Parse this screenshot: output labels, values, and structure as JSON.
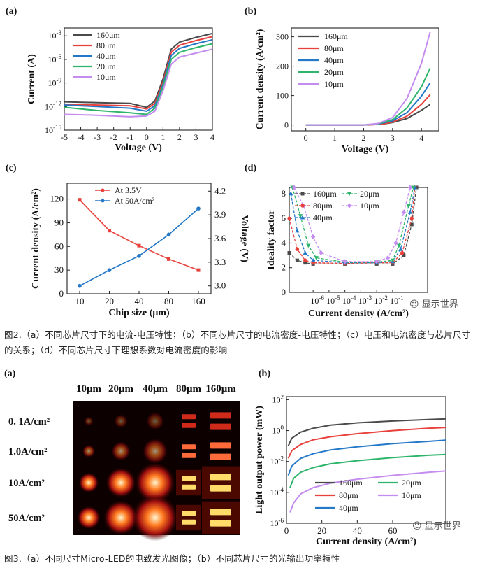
{
  "figure2": {
    "caption": "图2.（a）不同芯片尺寸下的电流-电压特性；（b）不同芯片尺寸的电流密度-电压特性；（c）电压和电流密度与芯片尺寸的关系；（d）不同芯片尺寸下理想系数对电流密度的影响",
    "watermark": "显示世界"
  },
  "figure3": {
    "caption": "图3.（a）不同尺寸Micro-LED的电致发光图像；（b）不同芯片尺寸的光输出功率特性",
    "watermark": "显示世界",
    "image_grid": {
      "panel_label": "(a)",
      "sizes": [
        "10μm",
        "20μm",
        "40μm",
        "80μm",
        "160μm"
      ],
      "current_densities": [
        "0. 1A/cm²",
        "1.0A/cm²",
        "10A/cm²",
        "50A/cm²"
      ]
    }
  },
  "chart_data": [
    {
      "id": "2a",
      "type": "line",
      "panel_label": "(a)",
      "xlabel": "Voltage (V)",
      "ylabel": "Current (A)",
      "xlim": [
        -5,
        4
      ],
      "ylim_log10": [
        -15,
        -2
      ],
      "yscale": "log",
      "x_ticks": [
        "-5",
        "-4",
        "-3",
        "-2",
        "-1",
        "0",
        "1",
        "2",
        "3",
        "4"
      ],
      "y_ticks": [
        {
          "base": "10",
          "exp": "-3"
        },
        {
          "base": "10",
          "exp": "-6"
        },
        {
          "base": "10",
          "exp": "-9"
        },
        {
          "base": "10",
          "exp": "-12"
        },
        {
          "base": "10",
          "exp": "-15"
        }
      ],
      "legend_position": "top-right",
      "series": [
        {
          "name": "160μm",
          "color": "#4a4a4a",
          "x": [
            -5,
            -3,
            -1,
            0,
            0.5,
            1,
            1.5,
            2,
            3,
            4
          ],
          "log10_y": [
            -11.4,
            -11.5,
            -11.6,
            -12.1,
            -11.3,
            -8.5,
            -4.7,
            -3.8,
            -3.2,
            -2.7
          ]
        },
        {
          "name": "80μm",
          "color": "#e8413c",
          "x": [
            -5,
            -3,
            -1,
            0,
            0.5,
            1,
            1.5,
            2,
            3,
            4
          ],
          "log10_y": [
            -11.7,
            -11.8,
            -11.9,
            -12.3,
            -11.6,
            -8.9,
            -5.1,
            -4.2,
            -3.6,
            -3.1
          ]
        },
        {
          "name": "40μm",
          "color": "#2478c8",
          "x": [
            -5,
            -3,
            -1,
            0,
            0.5,
            1,
            1.5,
            2,
            3,
            4
          ],
          "log10_y": [
            -11.8,
            -12.0,
            -12.2,
            -12.6,
            -11.9,
            -9.2,
            -5.5,
            -4.6,
            -4.0,
            -3.5
          ]
        },
        {
          "name": "20μm",
          "color": "#2fb56b",
          "x": [
            -5,
            -3,
            -1,
            0,
            0.5,
            1,
            1.5,
            2,
            3,
            4
          ],
          "log10_y": [
            -12.1,
            -12.5,
            -12.8,
            -13.0,
            -12.2,
            -9.5,
            -6.0,
            -5.1,
            -4.5,
            -4.0
          ]
        },
        {
          "name": "10μm",
          "color": "#c58cf0",
          "x": [
            -5,
            -3,
            -1,
            0,
            0.5,
            1,
            1.5,
            2,
            3,
            4
          ],
          "log10_y": [
            -13.0,
            -13.1,
            -13.3,
            -13.2,
            -12.6,
            -10.0,
            -6.6,
            -5.7,
            -5.2,
            -4.7
          ]
        }
      ]
    },
    {
      "id": "2b",
      "type": "line",
      "panel_label": "(b)",
      "xlabel": "Voltage (V)",
      "ylabel": "Current density (A/cm²)",
      "xlim": [
        -0.5,
        4.6
      ],
      "ylim": [
        -20,
        330
      ],
      "x_ticks": [
        "0",
        "1",
        "2",
        "3",
        "4"
      ],
      "y_ticks": [
        "0",
        "100",
        "200",
        "300"
      ],
      "legend_position": "top-left",
      "series": [
        {
          "name": "160μm",
          "color": "#4a4a4a",
          "x": [
            0,
            2,
            2.6,
            3,
            3.5,
            4,
            4.3
          ],
          "y": [
            0,
            0,
            2,
            8,
            22,
            50,
            70
          ]
        },
        {
          "name": "80μm",
          "color": "#e8413c",
          "x": [
            0,
            2,
            2.6,
            3,
            3.5,
            4,
            4.3
          ],
          "y": [
            0,
            0,
            2,
            10,
            30,
            70,
            103
          ]
        },
        {
          "name": "40μm",
          "color": "#2478c8",
          "x": [
            0,
            2,
            2.5,
            3,
            3.5,
            4,
            4.3
          ],
          "y": [
            0,
            0,
            3,
            14,
            42,
            98,
            143
          ]
        },
        {
          "name": "20μm",
          "color": "#2fb56b",
          "x": [
            0,
            2,
            2.5,
            3,
            3.5,
            4,
            4.3
          ],
          "y": [
            0,
            0,
            4,
            18,
            58,
            130,
            193
          ]
        },
        {
          "name": "10μm",
          "color": "#c58cf0",
          "x": [
            0,
            2,
            2.5,
            3,
            3.5,
            4,
            4.3
          ],
          "y": [
            0,
            0,
            5,
            25,
            90,
            210,
            316
          ]
        }
      ]
    },
    {
      "id": "2c",
      "type": "line",
      "panel_label": "(c)",
      "xlabel": "Chip size (μm)",
      "ylabel": "Current density (A/cm²)",
      "ylabel_right": "Voltage (V)",
      "categories": [
        "10",
        "20",
        "40",
        "80",
        "160"
      ],
      "ylim": [
        0,
        140
      ],
      "ylim_right": [
        2.9,
        4.3
      ],
      "y_ticks": [
        "0",
        "30",
        "60",
        "90",
        "120"
      ],
      "y_ticks_right": [
        "3.0",
        "3.3",
        "3.6",
        "3.9",
        "4.2"
      ],
      "legend_position": "top-center",
      "series": [
        {
          "name": "At 3.5V",
          "axis": "left",
          "color": "#e8413c",
          "values": [
            119,
            80,
            61,
            44,
            30
          ]
        },
        {
          "name": "At 50A/cm²",
          "axis": "right",
          "color": "#2478c8",
          "values": [
            3.0,
            3.2,
            3.38,
            3.65,
            3.98
          ]
        }
      ]
    },
    {
      "id": "2d",
      "type": "line",
      "panel_label": "(d)",
      "xlabel": "Current density (A/cm²)",
      "ylabel": "Ideality factor",
      "xscale": "log",
      "xlim_log10": [
        -7.5,
        1.2
      ],
      "ylim": [
        0,
        8.5
      ],
      "x_ticks": [
        {
          "base": "10",
          "exp": "-6"
        },
        {
          "base": "10",
          "exp": "-5"
        },
        {
          "base": "10",
          "exp": "-4"
        },
        {
          "base": "10",
          "exp": "-3"
        },
        {
          "base": "10",
          "exp": "-2"
        },
        {
          "base": "10",
          "exp": "-1"
        }
      ],
      "y_ticks": [
        "0",
        "2",
        "4",
        "6",
        "8"
      ],
      "legend_position": "top",
      "series": [
        {
          "name": "160μm",
          "color": "#4a4a4a",
          "marker": "square",
          "log10_x": [
            -7.5,
            -7,
            -6.5,
            -6,
            -4,
            -2,
            -1,
            -0.3,
            0.2,
            0.5
          ],
          "y": [
            3.2,
            2.6,
            2.4,
            2.3,
            2.3,
            2.3,
            2.3,
            3.0,
            5.5,
            8.5
          ]
        },
        {
          "name": "80μm",
          "color": "#e8413c",
          "marker": "circle",
          "log10_x": [
            -7.5,
            -7,
            -6.5,
            -6,
            -4,
            -2,
            -1,
            -0.4,
            0.2,
            0.4
          ],
          "y": [
            6.0,
            3.5,
            2.6,
            2.4,
            2.35,
            2.4,
            2.4,
            3.2,
            6.0,
            8.5
          ]
        },
        {
          "name": "40μm",
          "color": "#2478c8",
          "marker": "triangle",
          "log10_x": [
            -7.4,
            -7,
            -6.5,
            -6,
            -4,
            -2,
            -1,
            -0.5,
            0.1,
            0.4
          ],
          "y": [
            8.0,
            5.0,
            3.2,
            2.6,
            2.4,
            2.4,
            2.5,
            3.5,
            6.5,
            8.5
          ]
        },
        {
          "name": "20μm",
          "color": "#2fb56b",
          "marker": "triangle-down",
          "log10_x": [
            -7.3,
            -6.8,
            -6.3,
            -5.8,
            -4,
            -2,
            -1,
            -0.6,
            0,
            0.3
          ],
          "y": [
            8.5,
            6.2,
            3.8,
            2.8,
            2.45,
            2.45,
            2.6,
            3.8,
            7.0,
            8.5
          ]
        },
        {
          "name": "10μm",
          "color": "#c58cf0",
          "marker": "diamond",
          "log10_x": [
            -7.2,
            -6.6,
            -6,
            -5.5,
            -4,
            -2,
            -1.3,
            -0.8,
            -0.3,
            0.1
          ],
          "y": [
            8.5,
            7.0,
            4.5,
            3.2,
            2.5,
            2.5,
            2.8,
            4.0,
            6.5,
            8.5
          ]
        }
      ]
    },
    {
      "id": "3b",
      "type": "line",
      "panel_label": "(b)",
      "xlabel": "Current density (A/cm²)",
      "ylabel": "Light output power (mW)",
      "yscale": "log",
      "xlim": [
        0,
        90
      ],
      "ylim_log10": [
        -6,
        2.2
      ],
      "x_ticks": [
        "0",
        "20",
        "40",
        "60"
      ],
      "y_ticks": [
        {
          "base": "10",
          "exp": "2"
        },
        {
          "base": "10",
          "exp": "0"
        },
        {
          "base": "10",
          "exp": "-2"
        },
        {
          "base": "10",
          "exp": "-4"
        },
        {
          "base": "10",
          "exp": "-6"
        }
      ],
      "legend_position": "bottom-right",
      "series": [
        {
          "name": "160μm",
          "color": "#4a4a4a",
          "x": [
            1,
            3,
            8,
            15,
            25,
            40,
            60,
            80,
            90
          ],
          "log10_y": [
            -1.0,
            -0.5,
            -0.1,
            0.15,
            0.35,
            0.5,
            0.62,
            0.72,
            0.76
          ]
        },
        {
          "name": "80μm",
          "color": "#e8413c",
          "x": [
            1,
            3,
            8,
            15,
            25,
            40,
            60,
            80,
            90
          ],
          "log10_y": [
            -1.8,
            -1.3,
            -0.9,
            -0.6,
            -0.4,
            -0.2,
            0.0,
            0.15,
            0.2
          ]
        },
        {
          "name": "40μm",
          "color": "#2478c8",
          "x": [
            1,
            3,
            8,
            15,
            25,
            40,
            60,
            80,
            90
          ],
          "log10_y": [
            -2.9,
            -2.3,
            -1.8,
            -1.5,
            -1.25,
            -1.05,
            -0.85,
            -0.7,
            -0.62
          ]
        },
        {
          "name": "20μm",
          "color": "#2fb56b",
          "x": [
            2,
            4,
            8,
            15,
            25,
            40,
            60,
            80,
            90
          ],
          "log10_y": [
            -3.7,
            -3.1,
            -2.7,
            -2.4,
            -2.15,
            -1.95,
            -1.75,
            -1.6,
            -1.55
          ]
        },
        {
          "name": "10μm",
          "color": "#c58cf0",
          "x": [
            2,
            4,
            8,
            15,
            25,
            40,
            60,
            80,
            90
          ],
          "log10_y": [
            -5.3,
            -4.7,
            -4.1,
            -3.7,
            -3.4,
            -3.15,
            -2.9,
            -2.7,
            -2.62
          ]
        }
      ]
    }
  ]
}
